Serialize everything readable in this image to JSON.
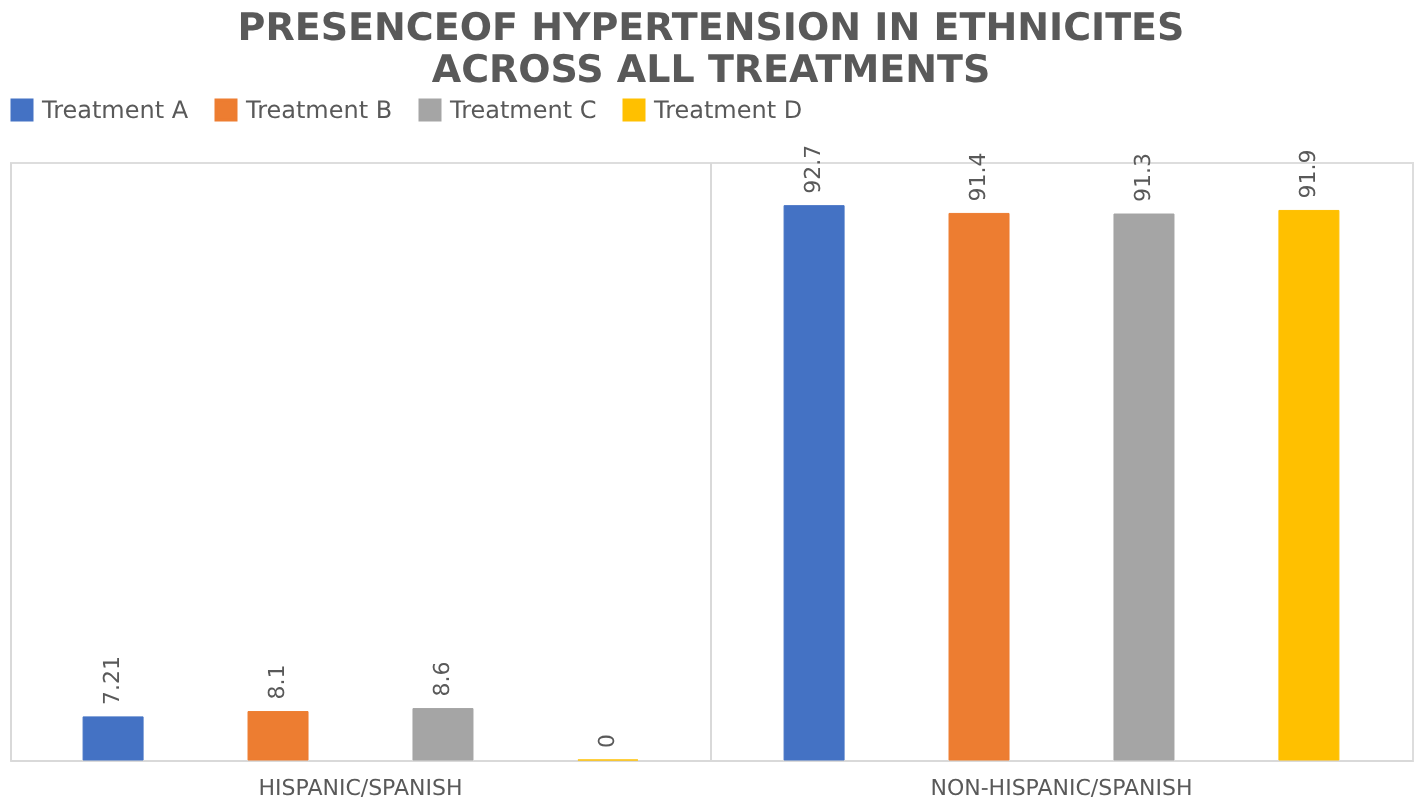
{
  "chart_data": {
    "type": "bar",
    "title": [
      "PRESENCEOF HYPERTENSION IN ETHNICITES",
      "ACROSS ALL TREATMENTS"
    ],
    "categories": [
      "HISPANIC/SPANISH",
      "NON-HISPANIC/SPANISH"
    ],
    "series": [
      {
        "name": "Treatment A",
        "color": "#4472c4",
        "values": [
          7.21,
          92.7
        ]
      },
      {
        "name": "Treatment B",
        "color": "#ed7d31",
        "values": [
          8.1,
          91.4
        ]
      },
      {
        "name": "Treatment C",
        "color": "#a5a5a5",
        "values": [
          8.6,
          91.3
        ]
      },
      {
        "name": "Treatment D",
        "color": "#ffc000",
        "values": [
          0,
          91.9
        ]
      }
    ],
    "data_labels": true,
    "legend": "top"
  }
}
